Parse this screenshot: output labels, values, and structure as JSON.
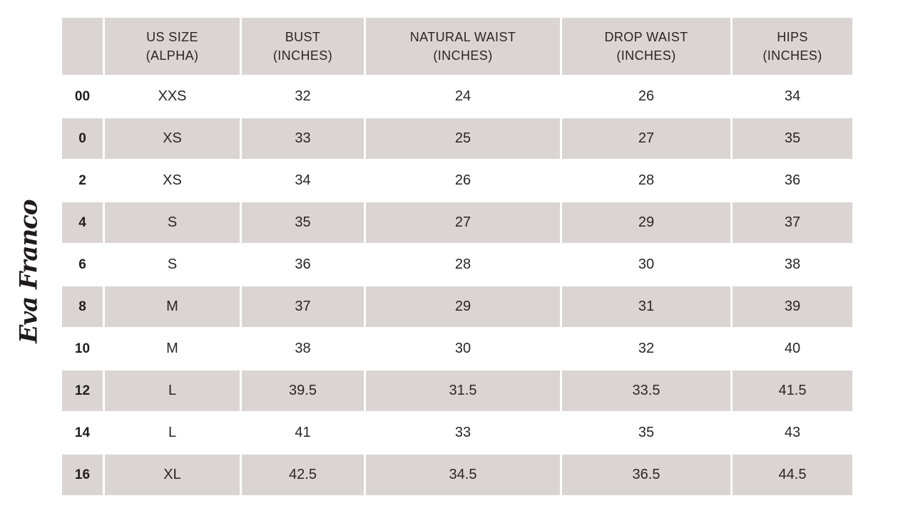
{
  "brand": {
    "logo_text": "Eva Franco"
  },
  "colors": {
    "shaded_row_bg": "#dad5d3",
    "header_bg": "#dad5d3",
    "white_row_bg": "#ffffff",
    "text": "#2a2526",
    "logo_ink": "#1f1b1c"
  },
  "table": {
    "headers": [
      "",
      "US SIZE\n(ALPHA)",
      "BUST\n(INCHES)",
      "NATURAL WAIST\n(INCHES)",
      "DROP WAIST\n(INCHES)",
      "HIPS\n(INCHES)"
    ],
    "rows": [
      {
        "us_size": "00",
        "alpha": "XXS",
        "bust": "32",
        "natural_waist": "24",
        "drop_waist": "26",
        "hips": "34"
      },
      {
        "us_size": "0",
        "alpha": "XS",
        "bust": "33",
        "natural_waist": "25",
        "drop_waist": "27",
        "hips": "35"
      },
      {
        "us_size": "2",
        "alpha": "XS",
        "bust": "34",
        "natural_waist": "26",
        "drop_waist": "28",
        "hips": "36"
      },
      {
        "us_size": "4",
        "alpha": "S",
        "bust": "35",
        "natural_waist": "27",
        "drop_waist": "29",
        "hips": "37"
      },
      {
        "us_size": "6",
        "alpha": "S",
        "bust": "36",
        "natural_waist": "28",
        "drop_waist": "30",
        "hips": "38"
      },
      {
        "us_size": "8",
        "alpha": "M",
        "bust": "37",
        "natural_waist": "29",
        "drop_waist": "31",
        "hips": "39"
      },
      {
        "us_size": "10",
        "alpha": "M",
        "bust": "38",
        "natural_waist": "30",
        "drop_waist": "32",
        "hips": "40"
      },
      {
        "us_size": "12",
        "alpha": "L",
        "bust": "39.5",
        "natural_waist": "31.5",
        "drop_waist": "33.5",
        "hips": "41.5"
      },
      {
        "us_size": "14",
        "alpha": "L",
        "bust": "41",
        "natural_waist": "33",
        "drop_waist": "35",
        "hips": "43"
      },
      {
        "us_size": "16",
        "alpha": "XL",
        "bust": "42.5",
        "natural_waist": "34.5",
        "drop_waist": "36.5",
        "hips": "44.5"
      }
    ]
  }
}
